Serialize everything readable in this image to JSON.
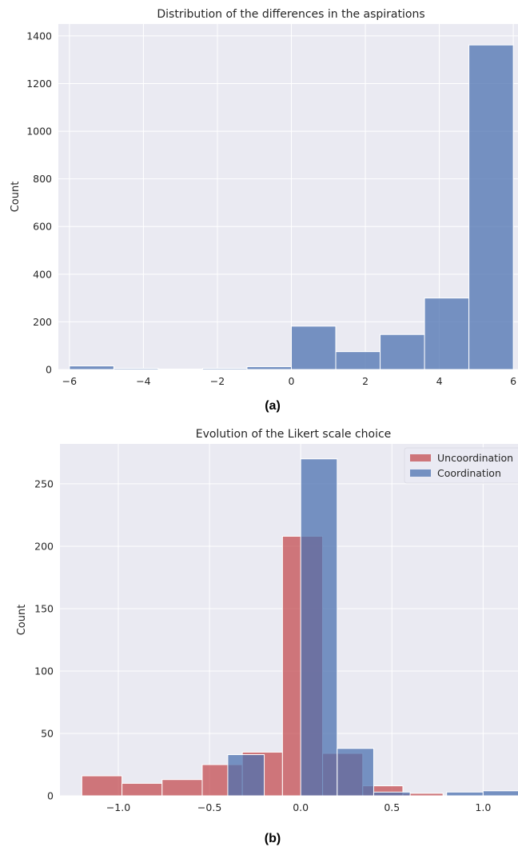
{
  "chart_data": [
    {
      "type": "bar",
      "title": "Distribution of the differences in the aspirations",
      "xlabel": "",
      "ylabel": "Count",
      "panel_label": "(a)",
      "xlim": [
        -6.3,
        6.3
      ],
      "ylim": [
        0,
        1450
      ],
      "xticks": [
        -6,
        -4,
        -2,
        0,
        2,
        4,
        6
      ],
      "xtick_labels": [
        "−6",
        "−4",
        "−2",
        "0",
        "2",
        "4",
        "6"
      ],
      "yticks": [
        0,
        200,
        400,
        600,
        800,
        1000,
        1200,
        1400
      ],
      "grid": true,
      "series": [
        {
          "color": "#4c72b0",
          "bins": [
            {
              "x0": -6.0,
              "x1": -4.8,
              "value": 15
            },
            {
              "x0": -4.8,
              "x1": -3.6,
              "value": 5
            },
            {
              "x0": -3.6,
              "x1": -2.4,
              "value": 2
            },
            {
              "x0": -2.4,
              "x1": -1.2,
              "value": 5
            },
            {
              "x0": -1.2,
              "x1": 0.0,
              "value": 12
            },
            {
              "x0": 0.0,
              "x1": 1.2,
              "value": 182
            },
            {
              "x0": 1.2,
              "x1": 2.4,
              "value": 75
            },
            {
              "x0": 2.4,
              "x1": 3.6,
              "value": 147
            },
            {
              "x0": 3.6,
              "x1": 4.8,
              "value": 300
            },
            {
              "x0": 4.8,
              "x1": 6.0,
              "value": 1362
            }
          ]
        }
      ]
    },
    {
      "type": "bar",
      "title": "Evolution of the Likert scale choice",
      "xlabel": "",
      "ylabel": "Count",
      "panel_label": "(b)",
      "xlim": [
        -1.32,
        1.2
      ],
      "ylim": [
        0,
        282
      ],
      "xticks": [
        -1.0,
        -0.5,
        0.0,
        0.5,
        1.0
      ],
      "xtick_labels": [
        "−1.0",
        "−0.5",
        "0.0",
        "0.5",
        "1.0"
      ],
      "yticks": [
        0,
        50,
        100,
        150,
        200,
        250
      ],
      "grid": true,
      "legend": "top-right",
      "series": [
        {
          "name": "Uncoordination",
          "color": "#c44e52",
          "bins": [
            {
              "x0": -1.2,
              "x1": -0.98,
              "value": 16
            },
            {
              "x0": -0.98,
              "x1": -0.76,
              "value": 10
            },
            {
              "x0": -0.76,
              "x1": -0.54,
              "value": 13
            },
            {
              "x0": -0.54,
              "x1": -0.32,
              "value": 25
            },
            {
              "x0": -0.32,
              "x1": -0.1,
              "value": 35
            },
            {
              "x0": -0.1,
              "x1": 0.12,
              "value": 208
            },
            {
              "x0": 0.12,
              "x1": 0.34,
              "value": 34
            },
            {
              "x0": 0.34,
              "x1": 0.56,
              "value": 8
            },
            {
              "x0": 0.56,
              "x1": 0.78,
              "value": 2
            },
            {
              "x0": 0.78,
              "x1": 1.0,
              "value": 0
            }
          ]
        },
        {
          "name": "Coordination",
          "color": "#4c72b0",
          "bins": [
            {
              "x0": -0.4,
              "x1": -0.2,
              "value": 33
            },
            {
              "x0": -0.2,
              "x1": 0.0,
              "value": 0
            },
            {
              "x0": 0.0,
              "x1": 0.2,
              "value": 270
            },
            {
              "x0": 0.2,
              "x1": 0.4,
              "value": 38
            },
            {
              "x0": 0.4,
              "x1": 0.6,
              "value": 3
            },
            {
              "x0": 0.6,
              "x1": 0.8,
              "value": 0
            },
            {
              "x0": 0.8,
              "x1": 1.0,
              "value": 3
            },
            {
              "x0": 1.0,
              "x1": 1.2,
              "value": 4
            }
          ]
        }
      ]
    }
  ]
}
